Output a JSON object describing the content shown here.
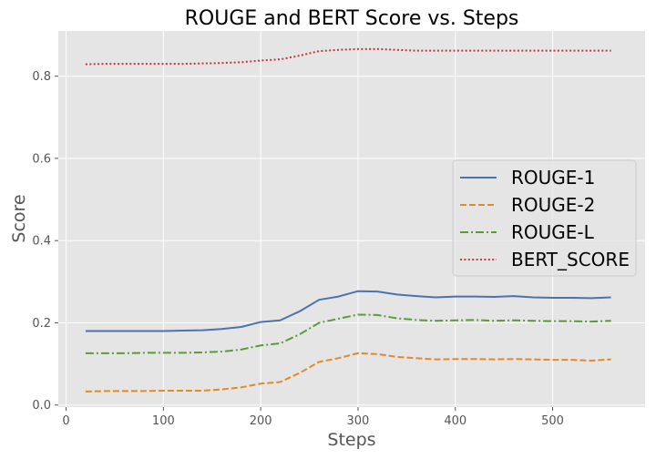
{
  "chart_data": {
    "type": "line",
    "title": "ROUGE and BERT Score vs. Steps",
    "xlabel": "Steps",
    "ylabel": "Score",
    "xlim": [
      -8,
      595
    ],
    "ylim": [
      -0.005,
      0.91
    ],
    "xticks": [
      0,
      100,
      200,
      300,
      400,
      500
    ],
    "yticks": [
      0.0,
      0.2,
      0.4,
      0.6,
      0.8
    ],
    "xtick_labels": [
      "0",
      "100",
      "200",
      "300",
      "400",
      "500"
    ],
    "ytick_labels": [
      "0.0",
      "0.2",
      "0.4",
      "0.6",
      "0.8"
    ],
    "grid": true,
    "legend_position": "center-right",
    "x": [
      20,
      40,
      60,
      80,
      100,
      120,
      140,
      160,
      180,
      200,
      220,
      240,
      260,
      280,
      300,
      320,
      340,
      360,
      380,
      400,
      420,
      440,
      460,
      480,
      500,
      520,
      540,
      560
    ],
    "series": [
      {
        "name": "ROUGE-1",
        "color": "#4c72b0",
        "dash": "solid",
        "values": [
          0.18,
          0.18,
          0.18,
          0.18,
          0.18,
          0.181,
          0.182,
          0.185,
          0.19,
          0.202,
          0.206,
          0.228,
          0.256,
          0.264,
          0.277,
          0.276,
          0.269,
          0.265,
          0.262,
          0.264,
          0.264,
          0.263,
          0.265,
          0.262,
          0.261,
          0.261,
          0.26,
          0.262
        ]
      },
      {
        "name": "ROUGE-2",
        "color": "#e08a2c",
        "dash": "dashed",
        "values": [
          0.033,
          0.034,
          0.034,
          0.034,
          0.035,
          0.035,
          0.035,
          0.038,
          0.043,
          0.052,
          0.056,
          0.078,
          0.105,
          0.114,
          0.126,
          0.124,
          0.117,
          0.114,
          0.111,
          0.112,
          0.112,
          0.111,
          0.112,
          0.111,
          0.11,
          0.11,
          0.108,
          0.111
        ]
      },
      {
        "name": "ROUGE-L",
        "color": "#5b9a3a",
        "dash": "dashdot",
        "values": [
          0.126,
          0.126,
          0.126,
          0.127,
          0.127,
          0.127,
          0.128,
          0.13,
          0.135,
          0.145,
          0.15,
          0.172,
          0.2,
          0.21,
          0.22,
          0.219,
          0.211,
          0.207,
          0.205,
          0.206,
          0.207,
          0.205,
          0.206,
          0.205,
          0.204,
          0.204,
          0.203,
          0.205
        ]
      },
      {
        "name": "BERT_SCORE",
        "color": "#c03a3a",
        "dash": "dotted",
        "values": [
          0.829,
          0.83,
          0.83,
          0.83,
          0.83,
          0.83,
          0.831,
          0.832,
          0.834,
          0.838,
          0.841,
          0.85,
          0.861,
          0.864,
          0.866,
          0.866,
          0.864,
          0.862,
          0.862,
          0.862,
          0.862,
          0.862,
          0.862,
          0.862,
          0.862,
          0.862,
          0.862,
          0.862
        ]
      }
    ]
  }
}
